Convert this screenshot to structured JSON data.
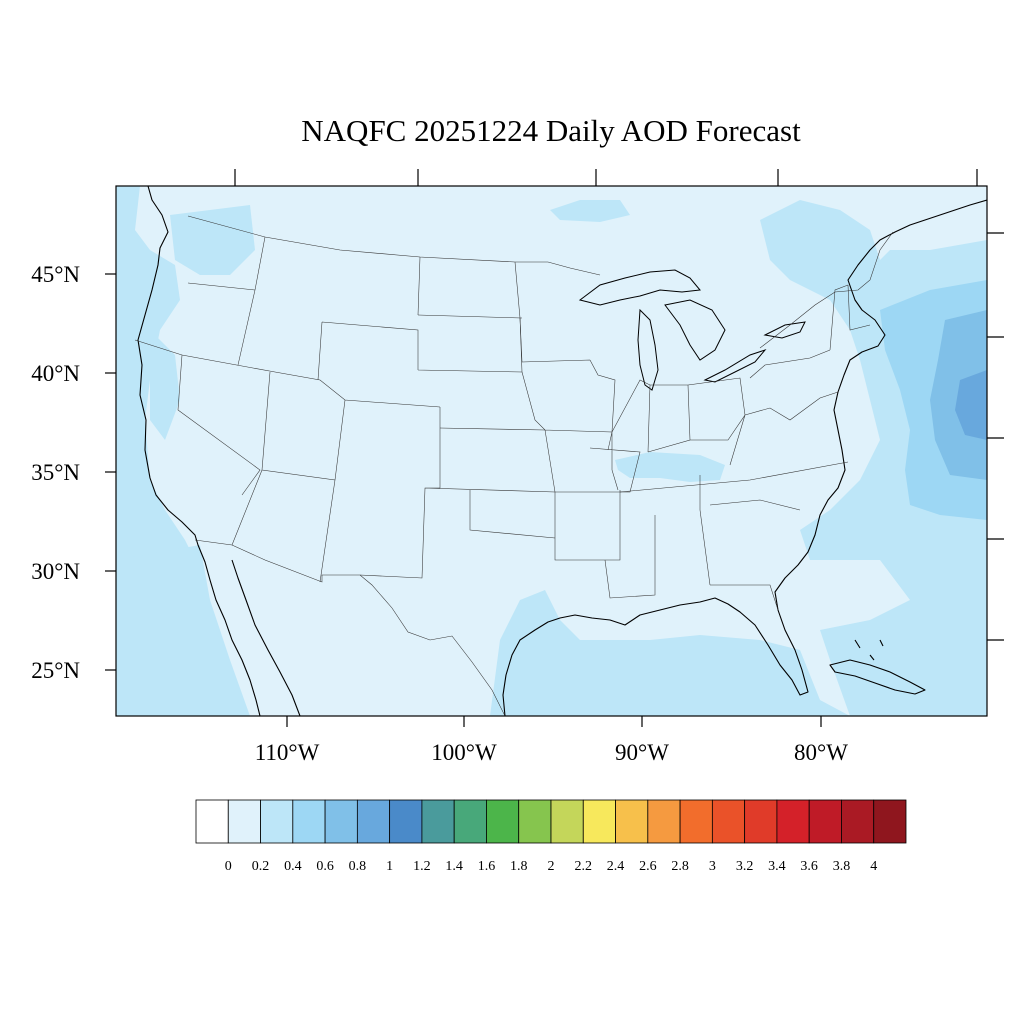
{
  "map": {
    "title": "NAQFC 20251224 Daily AOD Forecast",
    "lat_labels": [
      "45°N",
      "40°N",
      "35°N",
      "30°N",
      "25°N"
    ],
    "lon_labels": [
      "110°W",
      "100°W",
      "90°W",
      "80°W"
    ],
    "background_color": "#e0f2fb"
  },
  "colorbar": {
    "labels": [
      "0",
      "0.2",
      "0.4",
      "0.6",
      "0.8",
      "1",
      "1.2",
      "1.4",
      "1.6",
      "1.8",
      "2",
      "2.2",
      "2.4",
      "2.6",
      "2.8",
      "3",
      "3.2",
      "3.4",
      "3.6",
      "3.8",
      "4"
    ],
    "colors": [
      "#ffffff",
      "#e0f2fb",
      "#bde6f8",
      "#9dd7f4",
      "#80c0e8",
      "#68a8dd",
      "#4a8ac9",
      "#4a9b9c",
      "#48a87a",
      "#4cb54a",
      "#86c54e",
      "#c4d65a",
      "#f7e85c",
      "#f7c04b",
      "#f59a40",
      "#f26d2c",
      "#ea5229",
      "#e03b29",
      "#d42129",
      "#bf1b27",
      "#aa1a24",
      "#8f161e"
    ]
  }
}
